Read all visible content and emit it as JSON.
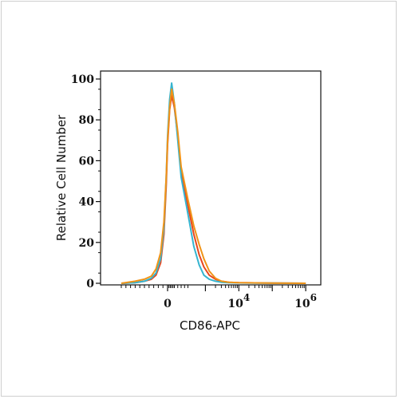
{
  "chart_data": {
    "type": "line",
    "title": "",
    "xlabel": "CD86-APC",
    "ylabel": "Relative Cell Number",
    "x_scale": "biexponential",
    "xlim": [
      -1000,
      1000000
    ],
    "ylim": [
      0,
      100
    ],
    "grid": false,
    "legend": "none",
    "x_ticks": [
      {
        "value": 0,
        "base": "0",
        "exp": ""
      },
      {
        "value": 10000,
        "base": "10",
        "exp": "4"
      },
      {
        "value": 1000000,
        "base": "10",
        "exp": "6"
      }
    ],
    "y_ticks": [
      {
        "value": 0,
        "label": "0"
      },
      {
        "value": 20,
        "label": "20"
      },
      {
        "value": 40,
        "label": "40"
      },
      {
        "value": 60,
        "label": "60"
      },
      {
        "value": 80,
        "label": "80"
      },
      {
        "value": 100,
        "label": "100"
      }
    ],
    "x": [
      -1000,
      -700,
      -500,
      -350,
      -250,
      -150,
      -80,
      -30,
      0,
      30,
      60,
      100,
      150,
      200,
      300,
      450,
      650,
      900,
      1300,
      2000,
      3000,
      5000,
      10000,
      30000,
      100000,
      1000000
    ],
    "series": [
      {
        "color": "#e8461c",
        "values": [
          0,
          0.3,
          1,
          2,
          4,
          10,
          24,
          48,
          68,
          85,
          92,
          86,
          72,
          55,
          38,
          24,
          14,
          8,
          4,
          2,
          1,
          0.5,
          0.3,
          0.2,
          0.1,
          0
        ]
      },
      {
        "color": "#35b4cf",
        "values": [
          0,
          0.3,
          1,
          2.5,
          5,
          12,
          27,
          52,
          72,
          90,
          98,
          88,
          70,
          52,
          34,
          18,
          9,
          4,
          2,
          1,
          0.5,
          0.3,
          0.2,
          0.1,
          0.1,
          0
        ]
      },
      {
        "color": "#f09418",
        "values": [
          0,
          1,
          2,
          3.5,
          7,
          15,
          30,
          52,
          70,
          86,
          95,
          88,
          74,
          57,
          41,
          28,
          19,
          12,
          6,
          2.5,
          1,
          0.5,
          0.3,
          0.2,
          0.1,
          0
        ]
      }
    ]
  }
}
